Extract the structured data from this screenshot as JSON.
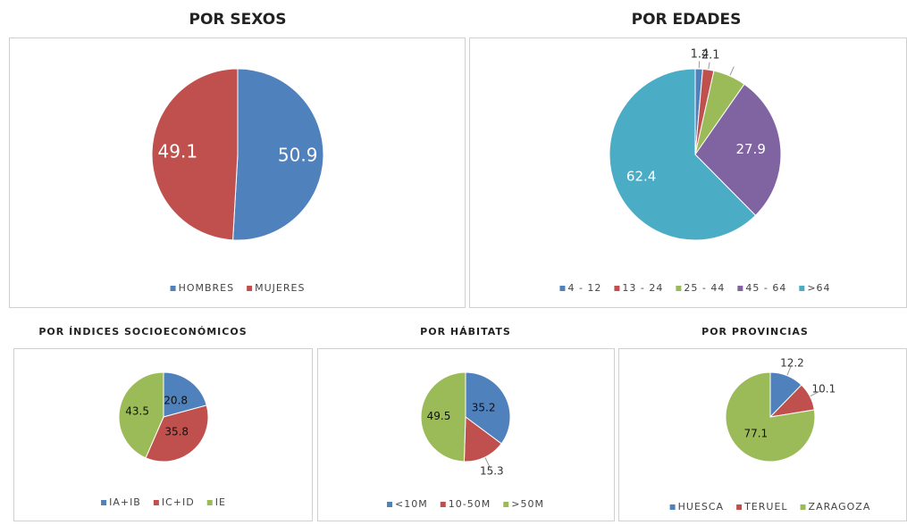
{
  "chart_data": [
    {
      "type": "pie",
      "title": "POR SEXOS",
      "categories": [
        "HOMBRES",
        "MUJERES"
      ],
      "values": [
        50.9,
        49.1
      ],
      "colors": [
        "#4f81bd",
        "#c0504d"
      ]
    },
    {
      "type": "pie",
      "title": "POR EDADES",
      "categories": [
        "4 - 12",
        "13 - 24",
        "25 - 44",
        "45 - 64",
        ">64"
      ],
      "values": [
        1.4,
        2.1,
        6.2,
        27.9,
        62.4
      ],
      "value_labels": [
        "1.4",
        "2.1",
        null,
        "27.9",
        "62.4"
      ],
      "colors": [
        "#4f81bd",
        "#c0504d",
        "#9bbb59",
        "#8064a2",
        "#4bacc6"
      ]
    },
    {
      "type": "pie",
      "title": "POR ÍNDICES SOCIOECONÓMICOS",
      "categories": [
        "IA+IB",
        "IC+ID",
        "IE"
      ],
      "values": [
        20.8,
        35.8,
        43.5
      ],
      "colors": [
        "#4f81bd",
        "#c0504d",
        "#9bbb59"
      ]
    },
    {
      "type": "pie",
      "title": "POR HÁBITATS",
      "categories": [
        "<10M",
        "10-50M",
        ">50M"
      ],
      "values": [
        35.2,
        15.3,
        49.5
      ],
      "colors": [
        "#4f81bd",
        "#c0504d",
        "#9bbb59"
      ]
    },
    {
      "type": "pie",
      "title": "POR PROVINCIAS",
      "categories": [
        "HUESCA",
        "TERUEL",
        "ZARAGOZA"
      ],
      "values": [
        12.2,
        10.1,
        77.1
      ],
      "colors": [
        "#4f81bd",
        "#c0504d",
        "#9bbb59"
      ]
    }
  ]
}
